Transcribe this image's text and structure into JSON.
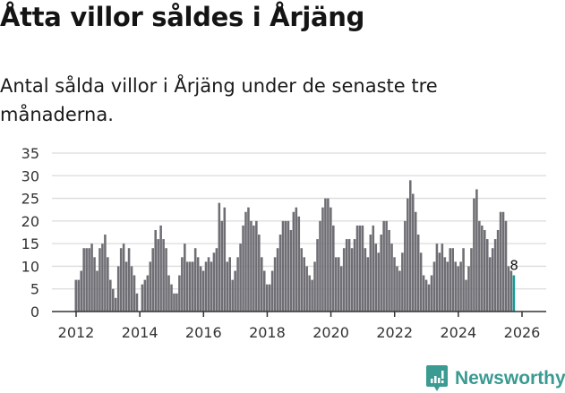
{
  "title": "Åtta villor såldes i Årjäng",
  "subtitle": "Antal sålda villor i Årjäng under de senaste tre månaderna.",
  "brand": {
    "name": "Newsworthy",
    "color": "#3a9b92",
    "icon": "bar-chart-speech-bubble-icon"
  },
  "colors": {
    "bar": "#6f6e74",
    "highlight": "#139a94",
    "grid": "#dcdcdc",
    "axis": "#333333"
  },
  "chart_data": {
    "type": "bar",
    "title": "Åtta villor såldes i Årjäng",
    "subtitle": "Antal sålda villor i Årjäng under de senaste tre månaderna.",
    "xlabel": "",
    "ylabel": "",
    "ylim": [
      0,
      35
    ],
    "yticks": [
      0,
      5,
      10,
      15,
      20,
      25,
      30,
      35
    ],
    "xticks": [
      "2012",
      "2014",
      "2016",
      "2018",
      "2020",
      "2022",
      "2024",
      "2026"
    ],
    "grid": true,
    "legend": null,
    "x_start": "2012-01",
    "x_end": "2026-02",
    "frequency": "monthly",
    "annotation": {
      "label": "8",
      "at": "2026-02",
      "value": 8
    },
    "values": [
      7,
      7,
      9,
      14,
      14,
      14,
      15,
      12,
      9,
      14,
      15,
      17,
      12,
      7,
      5,
      3,
      10,
      14,
      15,
      11,
      14,
      10,
      8,
      4,
      0,
      6,
      7,
      8,
      11,
      14,
      18,
      16,
      19,
      16,
      14,
      8,
      6,
      4,
      4,
      8,
      12,
      15,
      11,
      11,
      11,
      14,
      12,
      10,
      9,
      11,
      12,
      11,
      13,
      14,
      24,
      20,
      23,
      11,
      12,
      7,
      9,
      12,
      15,
      19,
      22,
      23,
      20,
      19,
      20,
      17,
      12,
      9,
      6,
      6,
      9,
      12,
      14,
      17,
      20,
      20,
      20,
      18,
      22,
      23,
      21,
      14,
      12,
      10,
      8,
      7,
      11,
      16,
      20,
      23,
      25,
      25,
      23,
      19,
      12,
      12,
      10,
      14,
      16,
      16,
      14,
      16,
      19,
      19,
      19,
      14,
      12,
      17,
      19,
      15,
      13,
      17,
      20,
      20,
      18,
      15,
      12,
      10,
      9,
      13,
      20,
      25,
      29,
      26,
      22,
      17,
      13,
      8,
      7,
      6,
      8,
      11,
      15,
      13,
      15,
      12,
      11,
      14,
      14,
      11,
      10,
      11,
      14,
      7,
      10,
      14,
      25,
      27,
      20,
      19,
      18,
      16,
      12,
      14,
      16,
      18,
      22,
      22,
      20,
      10,
      9,
      8
    ]
  }
}
